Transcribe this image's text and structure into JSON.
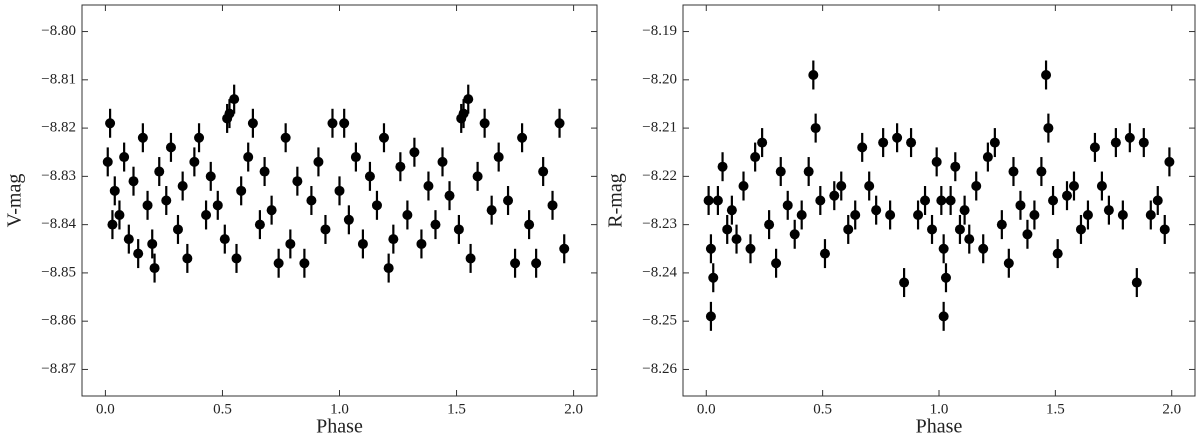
{
  "chart_data": [
    {
      "type": "scatter",
      "ylabel": "V-mag",
      "xlabel": "Phase",
      "color": "#000000",
      "yerr": 0.003,
      "xlim": [
        -0.1,
        2.1
      ],
      "ylim": [
        -8.8755,
        -8.7945
      ],
      "xticks": [
        {
          "value": 0,
          "label": "0.0"
        },
        {
          "value": 0.5,
          "label": "0.5"
        },
        {
          "value": 1,
          "label": "1.0"
        },
        {
          "value": 1.5,
          "label": "1.5"
        },
        {
          "value": 2,
          "label": "2.0"
        }
      ],
      "yticks": [
        {
          "value": -8.8,
          "label": "−8.80"
        },
        {
          "value": -8.81,
          "label": "−8.81"
        },
        {
          "value": -8.82,
          "label": "−8.82"
        },
        {
          "value": -8.83,
          "label": "−8.83"
        },
        {
          "value": -8.84,
          "label": "−8.84"
        },
        {
          "value": -8.85,
          "label": "−8.85"
        },
        {
          "value": -8.86,
          "label": "−8.86"
        },
        {
          "value": -8.87,
          "label": "−8.87"
        }
      ],
      "x": [
        0.01,
        0.02,
        0.03,
        0.04,
        0.06,
        0.08,
        0.1,
        0.12,
        0.14,
        0.16,
        0.18,
        0.2,
        0.21,
        0.23,
        0.26,
        0.28,
        0.31,
        0.33,
        0.35,
        0.38,
        0.4,
        0.43,
        0.45,
        0.48,
        0.51,
        0.52,
        0.53,
        0.55,
        0.56,
        0.58,
        0.61,
        0.63,
        0.66,
        0.68,
        0.71,
        0.74,
        0.77,
        0.79,
        0.82,
        0.85,
        0.88,
        0.91,
        0.94,
        0.97,
        1.0,
        1.02,
        1.04,
        1.07,
        1.1,
        1.13,
        1.16,
        1.19,
        1.21,
        1.23,
        1.26,
        1.29,
        1.32,
        1.35,
        1.38,
        1.41,
        1.44,
        1.47,
        1.51,
        1.52,
        1.53,
        1.55,
        1.56,
        1.59,
        1.62,
        1.65,
        1.68,
        1.72,
        1.75,
        1.78,
        1.81,
        1.84,
        1.87,
        1.91,
        1.94,
        1.96
      ],
      "values": [
        -8.827,
        -8.819,
        -8.84,
        -8.833,
        -8.838,
        -8.826,
        -8.843,
        -8.831,
        -8.846,
        -8.822,
        -8.836,
        -8.844,
        -8.849,
        -8.829,
        -8.835,
        -8.824,
        -8.841,
        -8.832,
        -8.847,
        -8.827,
        -8.822,
        -8.838,
        -8.83,
        -8.836,
        -8.843,
        -8.818,
        -8.817,
        -8.814,
        -8.847,
        -8.833,
        -8.826,
        -8.819,
        -8.84,
        -8.829,
        -8.837,
        -8.848,
        -8.822,
        -8.844,
        -8.831,
        -8.848,
        -8.835,
        -8.827,
        -8.841,
        -8.819,
        -8.833,
        -8.819,
        -8.839,
        -8.826,
        -8.844,
        -8.83,
        -8.836,
        -8.822,
        -8.849,
        -8.843,
        -8.828,
        -8.838,
        -8.825,
        -8.844,
        -8.832,
        -8.84,
        -8.827,
        -8.834,
        -8.841,
        -8.818,
        -8.817,
        -8.814,
        -8.847,
        -8.83,
        -8.819,
        -8.837,
        -8.826,
        -8.835,
        -8.848,
        -8.822,
        -8.84,
        -8.848,
        -8.829,
        -8.836,
        -8.819,
        -8.845
      ]
    },
    {
      "type": "scatter",
      "ylabel": "R-mag",
      "xlabel": "Phase",
      "color": "#000000",
      "yerr": 0.003,
      "xlim": [
        -0.1,
        2.1
      ],
      "ylim": [
        -8.2655,
        -8.1845
      ],
      "xticks": [
        {
          "value": 0,
          "label": "0.0"
        },
        {
          "value": 0.5,
          "label": "0.5"
        },
        {
          "value": 1,
          "label": "1.0"
        },
        {
          "value": 1.5,
          "label": "1.5"
        },
        {
          "value": 2,
          "label": "2.0"
        }
      ],
      "yticks": [
        {
          "value": -8.19,
          "label": "−8.19"
        },
        {
          "value": -8.2,
          "label": "−8.20"
        },
        {
          "value": -8.21,
          "label": "−8.21"
        },
        {
          "value": -8.22,
          "label": "−8.22"
        },
        {
          "value": -8.23,
          "label": "−8.23"
        },
        {
          "value": -8.24,
          "label": "−8.24"
        },
        {
          "value": -8.25,
          "label": "−8.25"
        },
        {
          "value": -8.26,
          "label": "−8.26"
        }
      ],
      "x": [
        0.01,
        0.02,
        0.02,
        0.03,
        0.05,
        0.07,
        0.09,
        0.11,
        0.13,
        0.16,
        0.19,
        0.21,
        0.24,
        0.27,
        0.3,
        0.32,
        0.35,
        0.38,
        0.41,
        0.44,
        0.46,
        0.47,
        0.49,
        0.51,
        0.55,
        0.58,
        0.61,
        0.64,
        0.67,
        0.7,
        0.73,
        0.76,
        0.79,
        0.82,
        0.85,
        0.88,
        0.91,
        0.94,
        0.97,
        0.99,
        1.01,
        1.02,
        1.02,
        1.03,
        1.05,
        1.07,
        1.09,
        1.11,
        1.13,
        1.16,
        1.19,
        1.21,
        1.24,
        1.27,
        1.3,
        1.32,
        1.35,
        1.38,
        1.41,
        1.44,
        1.46,
        1.47,
        1.49,
        1.51,
        1.55,
        1.58,
        1.61,
        1.64,
        1.67,
        1.7,
        1.73,
        1.76,
        1.79,
        1.82,
        1.85,
        1.88,
        1.91,
        1.94,
        1.97,
        1.99
      ],
      "values": [
        -8.225,
        -8.235,
        -8.249,
        -8.241,
        -8.225,
        -8.218,
        -8.231,
        -8.227,
        -8.233,
        -8.222,
        -8.235,
        -8.216,
        -8.213,
        -8.23,
        -8.238,
        -8.219,
        -8.226,
        -8.232,
        -8.228,
        -8.219,
        -8.199,
        -8.21,
        -8.225,
        -8.236,
        -8.224,
        -8.222,
        -8.231,
        -8.228,
        -8.214,
        -8.222,
        -8.227,
        -8.213,
        -8.228,
        -8.212,
        -8.242,
        -8.213,
        -8.228,
        -8.225,
        -8.231,
        -8.217,
        -8.225,
        -8.235,
        -8.249,
        -8.241,
        -8.225,
        -8.218,
        -8.231,
        -8.227,
        -8.233,
        -8.222,
        -8.235,
        -8.216,
        -8.213,
        -8.23,
        -8.238,
        -8.219,
        -8.226,
        -8.232,
        -8.228,
        -8.219,
        -8.199,
        -8.21,
        -8.225,
        -8.236,
        -8.224,
        -8.222,
        -8.231,
        -8.228,
        -8.214,
        -8.222,
        -8.227,
        -8.213,
        -8.228,
        -8.212,
        -8.242,
        -8.213,
        -8.228,
        -8.225,
        -8.231,
        -8.217
      ]
    }
  ]
}
